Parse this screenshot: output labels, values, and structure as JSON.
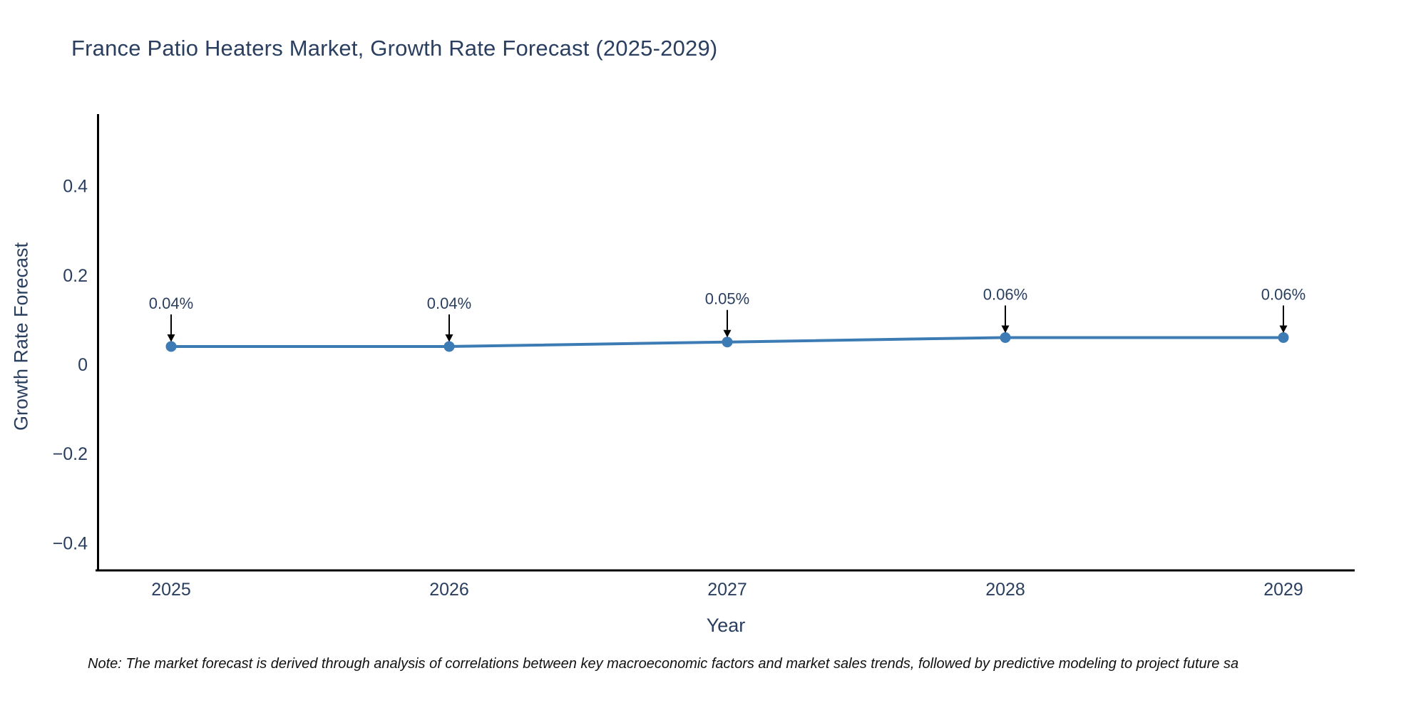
{
  "chart_data": {
    "type": "line",
    "title": "France Patio Heaters Market, Growth Rate Forecast (2025-2029)",
    "xlabel": "Year",
    "ylabel": "Growth Rate Forecast",
    "x": [
      2025,
      2026,
      2027,
      2028,
      2029
    ],
    "xtick_labels": [
      "2025",
      "2026",
      "2027",
      "2028",
      "2029"
    ],
    "values": [
      0.04,
      0.04,
      0.05,
      0.06,
      0.06
    ],
    "point_labels": [
      "0.04%",
      "0.04%",
      "0.05%",
      "0.06%",
      "0.06%"
    ],
    "unit": "%",
    "yticks": [
      0.4,
      0.2,
      0,
      -0.2,
      -0.4
    ],
    "ytick_labels": [
      "0.4",
      "0.2",
      "0",
      "−0.2",
      "−0.4"
    ],
    "ylim": [
      -0.47,
      0.56
    ],
    "grid": false,
    "legend": "none",
    "colors": {
      "line": "#3d7bb4",
      "marker": "#3d7bb4",
      "axis": "#000000",
      "arrow": "#000000",
      "text": "#2a3f5f",
      "background": "#ffffff"
    }
  },
  "note": {
    "text": "Note: The market forecast is derived through analysis of correlations between key macroeconomic factors and market sales trends, followed by predictive modeling to project future sa",
    "color": "#111111"
  }
}
